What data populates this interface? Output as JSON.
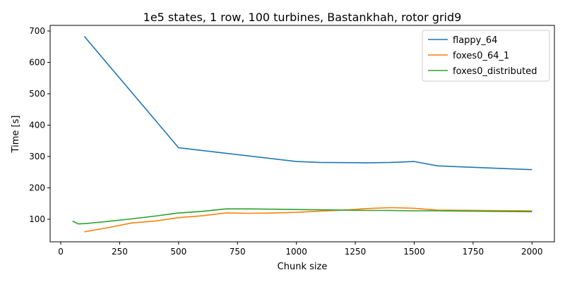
{
  "chart_data": {
    "type": "line",
    "title": "1e5 states, 1 row, 100 turbines, Bastankhah, rotor grid9",
    "xlabel": "Chunk size",
    "ylabel": "Time [s]",
    "xlim": [
      -45,
      2095
    ],
    "ylim": [
      28,
      718
    ],
    "xticks": [
      0,
      250,
      500,
      750,
      1000,
      1250,
      1500,
      1750,
      2000
    ],
    "yticks": [
      100,
      200,
      300,
      400,
      500,
      600,
      700
    ],
    "grid": false,
    "legend_position": "top-right",
    "series": [
      {
        "name": "flappy_64",
        "color": "#1f77b4",
        "x": [
          100,
          500,
          1000,
          1100,
          1300,
          1400,
          1500,
          1600,
          2000
        ],
        "y": [
          683,
          328,
          284,
          281,
          280,
          281,
          284,
          270,
          258
        ]
      },
      {
        "name": "foxes0_64_1",
        "color": "#ff7f0e",
        "x": [
          100,
          200,
          300,
          400,
          500,
          600,
          700,
          800,
          900,
          1000,
          1100,
          1200,
          1300,
          1400,
          1500,
          1600,
          2000
        ],
        "y": [
          60,
          73,
          88,
          94,
          105,
          111,
          120,
          119,
          120,
          122,
          126,
          129,
          134,
          137,
          135,
          129,
          127
        ]
      },
      {
        "name": "foxes0_distributed",
        "color": "#2ca02c",
        "x": [
          50,
          75,
          100,
          200,
          300,
          400,
          500,
          600,
          700,
          800,
          900,
          1000,
          1100,
          1200,
          1300,
          1400,
          1500,
          1600,
          2000
        ],
        "y": [
          94,
          85,
          86,
          93,
          101,
          110,
          120,
          125,
          133,
          133,
          132,
          131,
          130,
          129,
          128,
          128,
          127,
          127,
          124
        ]
      }
    ]
  }
}
